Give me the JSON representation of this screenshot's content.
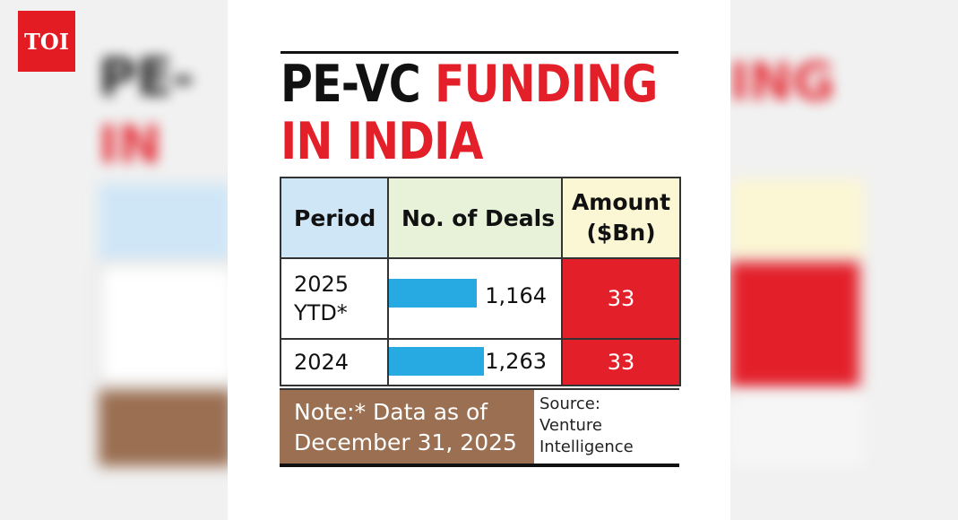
{
  "brand": {
    "logo": "TOI"
  },
  "title": {
    "part1": "PE-VC",
    "part2": "FUNDING",
    "part3": "IN INDIA"
  },
  "table": {
    "headers": {
      "period": "Period",
      "deals": "No. of Deals",
      "amount_line1": "Amount",
      "amount_line2": "($Bn)"
    },
    "rows": [
      {
        "period_line1": "2025",
        "period_line2": "YTD*",
        "deals_label": "1,164",
        "amount": "33"
      },
      {
        "period_line1": "2024",
        "period_line2": "",
        "deals_label": "1,263",
        "amount": "33"
      }
    ]
  },
  "footer": {
    "note_line1": "Note:* Data as of",
    "note_line2": "December 31, 2025",
    "source_line1": "Source:",
    "source_line2": "Venture",
    "source_line3": "Intelligence"
  },
  "chart_data": {
    "type": "table",
    "title": "PE-VC FUNDING IN INDIA",
    "columns": [
      "Period",
      "No. of Deals",
      "Amount ($Bn)"
    ],
    "categories": [
      "2025 YTD*",
      "2024"
    ],
    "series": [
      {
        "name": "No. of Deals",
        "values": [
          1164,
          1263
        ]
      },
      {
        "name": "Amount ($Bn)",
        "values": [
          33,
          33
        ]
      }
    ]
  },
  "colors": {
    "accent_red": "#e3202a",
    "bar_blue": "#27aae1",
    "note_brown": "#9a6f52"
  }
}
